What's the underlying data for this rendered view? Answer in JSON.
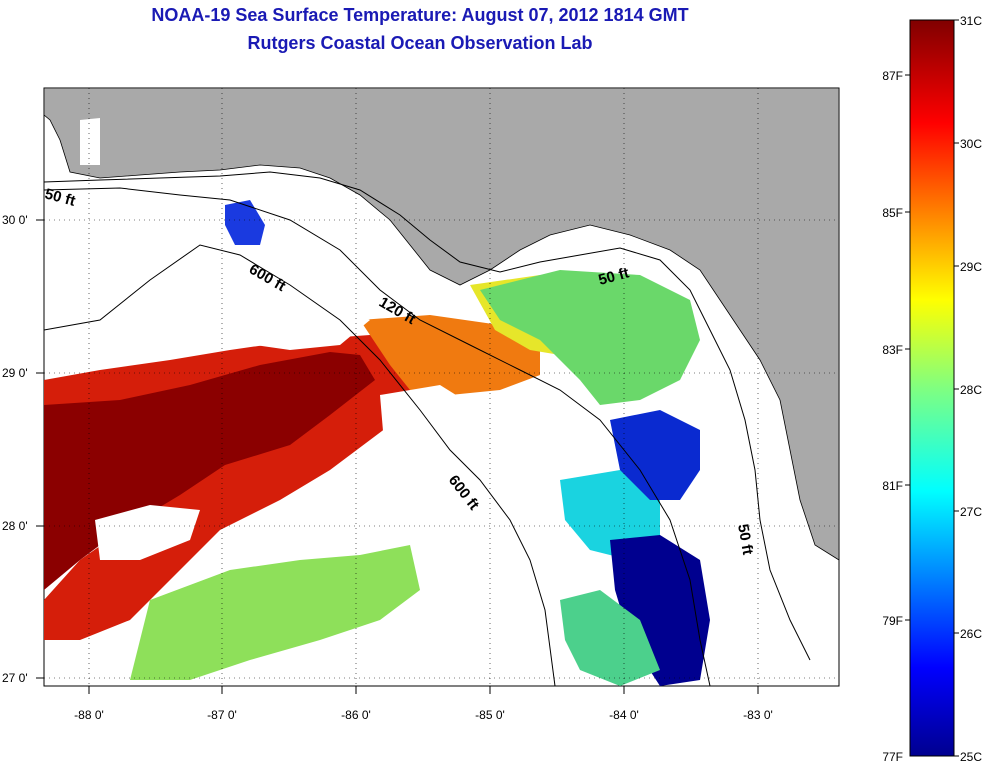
{
  "title": {
    "line1": "NOAA-19 Sea Surface Temperature:  August 07, 2012 1814 GMT",
    "line2": "Rutgers Coastal Ocean Observation Lab"
  },
  "map": {
    "lon_labels": [
      "-88 0'",
      "-87 0'",
      "-86 0'",
      "-85 0'",
      "-84 0'",
      "-83 0'"
    ],
    "lat_labels": [
      "30 0'",
      "29 0'",
      "28 0'",
      "27 0'"
    ],
    "isobath_labels": [
      "50 ft",
      "600 ft",
      "120 ft",
      "50 ft",
      "600 ft",
      "50 ft"
    ],
    "colors": {
      "land": "#a9a9a9",
      "cloud": "#ffffff",
      "hot": "#8b0000",
      "cold": "#00008f"
    }
  },
  "colorbar": {
    "celsius": [
      "31C",
      "30C",
      "29C",
      "28C",
      "27C",
      "26C",
      "25C"
    ],
    "fahrenheit": [
      "87F",
      "85F",
      "83F",
      "81F",
      "79F",
      "77F"
    ]
  }
}
